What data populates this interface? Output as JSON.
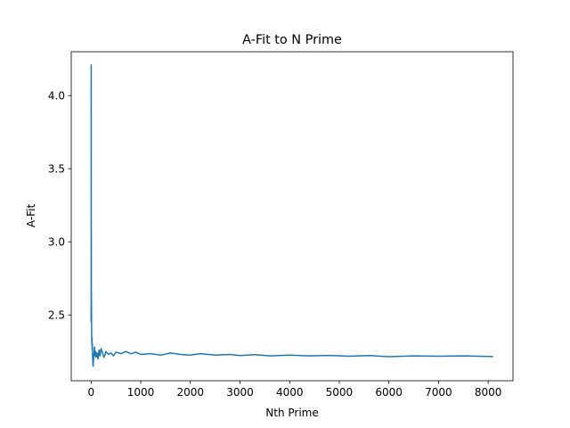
{
  "chart_data": {
    "type": "line",
    "title": "A-Fit to N Prime",
    "xlabel": "Nth Prime",
    "ylabel": "A-Fit",
    "xlim": [
      -400,
      8500
    ],
    "ylim": [
      2.05,
      4.3
    ],
    "xticks": [
      0,
      1000,
      2000,
      3000,
      4000,
      5000,
      6000,
      7000,
      8000
    ],
    "xtick_labels": [
      "0",
      "1000",
      "2000",
      "3000",
      "4000",
      "5000",
      "6000",
      "7000",
      "8000"
    ],
    "yticks": [
      2.5,
      3.0,
      3.5,
      4.0
    ],
    "ytick_labels": [
      "2.5",
      "3.0",
      "3.5",
      "4.0"
    ],
    "grid": false,
    "legend": "none",
    "series": [
      {
        "color": "#1f77b4",
        "x": [
          1,
          2,
          3,
          4,
          5,
          6,
          8,
          10,
          12,
          15,
          18,
          22,
          26,
          30,
          35,
          40,
          50,
          60,
          70,
          80,
          90,
          100,
          120,
          140,
          160,
          180,
          200,
          230,
          260,
          300,
          350,
          400,
          450,
          500,
          600,
          700,
          800,
          900,
          1000,
          1200,
          1400,
          1600,
          1800,
          2000,
          2200,
          2500,
          2800,
          3000,
          3300,
          3600,
          4000,
          4400,
          4800,
          5200,
          5600,
          6000,
          6500,
          7000,
          7500,
          8000,
          8100
        ],
        "y": [
          2.45,
          4.21,
          2.65,
          3.1,
          2.5,
          2.66,
          2.55,
          2.42,
          2.36,
          2.3,
          2.35,
          2.26,
          2.3,
          2.22,
          2.18,
          2.15,
          2.2,
          2.24,
          2.28,
          2.22,
          2.25,
          2.21,
          2.24,
          2.2,
          2.26,
          2.22,
          2.27,
          2.24,
          2.21,
          2.25,
          2.23,
          2.24,
          2.22,
          2.245,
          2.235,
          2.25,
          2.235,
          2.245,
          2.23,
          2.235,
          2.225,
          2.24,
          2.23,
          2.225,
          2.235,
          2.225,
          2.23,
          2.222,
          2.228,
          2.22,
          2.225,
          2.22,
          2.223,
          2.218,
          2.222,
          2.215,
          2.22,
          2.218,
          2.22,
          2.216,
          2.215
        ]
      }
    ]
  }
}
